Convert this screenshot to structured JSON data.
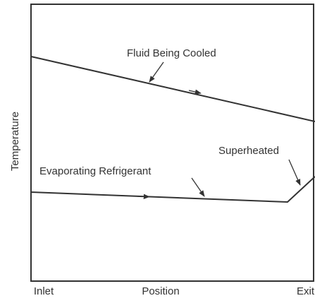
{
  "diagram": {
    "y_axis_label": "Temperature",
    "x_axis_label": "Position",
    "x_start_label": "Inlet",
    "x_end_label": "Exit",
    "curves": [
      {
        "label": "Fluid Being Cooled"
      },
      {
        "label": "Evaporating Refrigerant"
      },
      {
        "label": "Superheated"
      }
    ]
  }
}
